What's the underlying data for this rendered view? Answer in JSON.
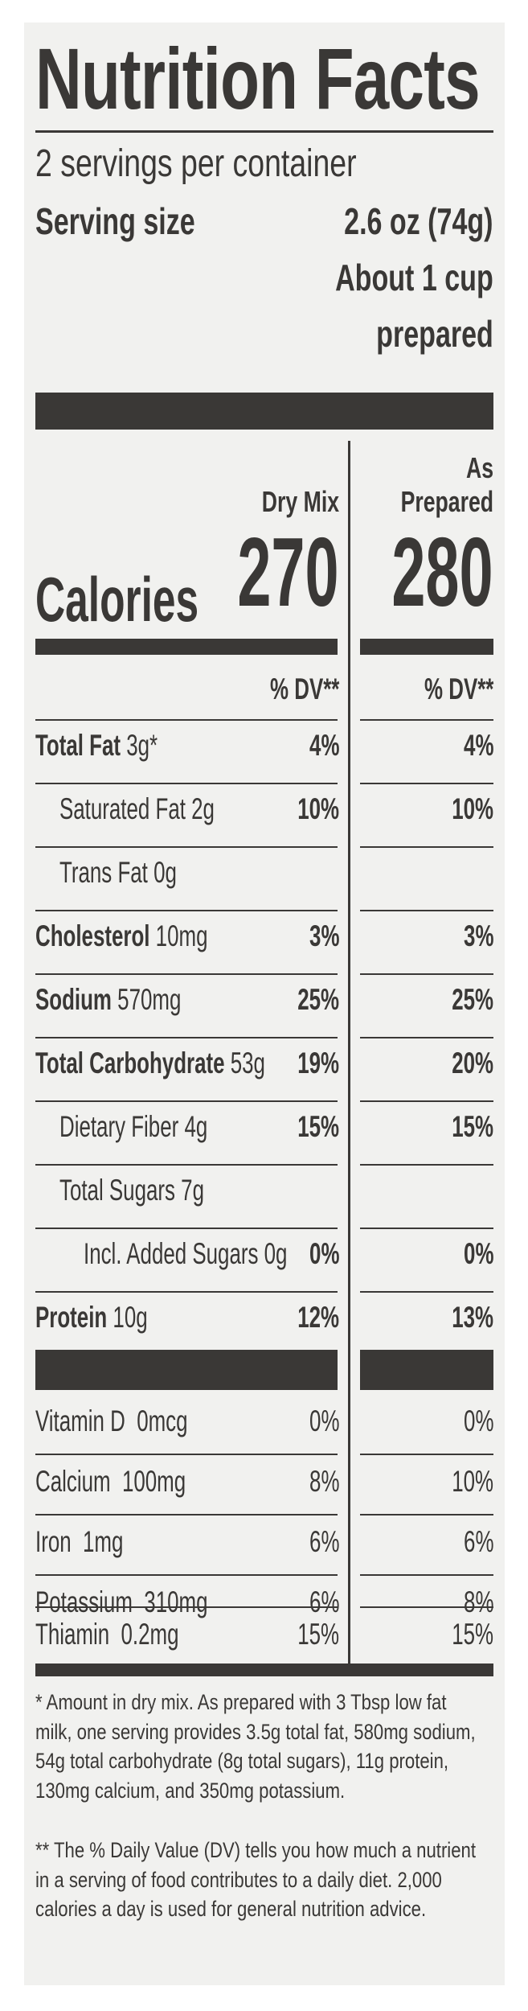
{
  "title": "Nutrition Facts",
  "servings_per_container": "2 servings per container",
  "serving_size_label": "Serving size",
  "serving_size_value": "2.6 oz (74g)",
  "serving_size_line2": "About 1 cup",
  "serving_size_line3": "prepared",
  "columns": {
    "dry": "Dry Mix",
    "prepared_line1": "As",
    "prepared_line2": "Prepared"
  },
  "calories": {
    "label": "Calories",
    "dry": "270",
    "prepared": "280"
  },
  "dv_header": "% DV**",
  "nutrients": [
    {
      "name": "Total Fat",
      "amount": "3g*",
      "dry": "4%",
      "prepared": "4%"
    },
    {
      "name": "Saturated Fat",
      "amount": "2g",
      "dry": "10%",
      "prepared": "10%"
    },
    {
      "name": "Trans Fat",
      "amount": "0g",
      "dry": "",
      "prepared": ""
    },
    {
      "name": "Cholesterol",
      "amount": "10mg",
      "dry": "3%",
      "prepared": "3%"
    },
    {
      "name": "Sodium",
      "amount": "570mg",
      "dry": "25%",
      "prepared": "25%"
    },
    {
      "name": "Total Carbohydrate",
      "amount": "53g",
      "dry": "19%",
      "prepared": "20%"
    },
    {
      "name": "Dietary Fiber",
      "amount": "4g",
      "dry": "15%",
      "prepared": "15%"
    },
    {
      "name": "Total Sugars",
      "amount": "7g",
      "dry": "",
      "prepared": ""
    },
    {
      "name": "Incl. Added Sugars",
      "amount": "0g",
      "dry": "0%",
      "prepared": "0%"
    },
    {
      "name": "Protein",
      "amount": "10g",
      "dry": "12%",
      "prepared": "13%"
    }
  ],
  "vitamins": [
    {
      "name": "Vitamin D",
      "amount": "0mcg",
      "dry": "0%",
      "prepared": "0%"
    },
    {
      "name": "Calcium",
      "amount": "100mg",
      "dry": "8%",
      "prepared": "10%"
    },
    {
      "name": "Iron",
      "amount": "1mg",
      "dry": "6%",
      "prepared": "6%"
    },
    {
      "name": "Potassium",
      "amount": "310mg",
      "dry": "6%",
      "prepared": "8%"
    },
    {
      "name": "Thiamin",
      "amount": "0.2mg",
      "dry": "15%",
      "prepared": "15%"
    }
  ],
  "footnote1": "* Amount in dry mix. As prepared with 3 Tbsp low fat milk, one serving provides 3.5g total fat, 580mg sodium, 54g total carbohydrate (8g total sugars), 11g protein, 130mg calcium, and 350mg potassium.",
  "footnote2": "** The % Daily Value (DV) tells you how much a nutrient in a serving of food contributes to a daily diet. 2,000 calories a day is used for general nutrition advice."
}
